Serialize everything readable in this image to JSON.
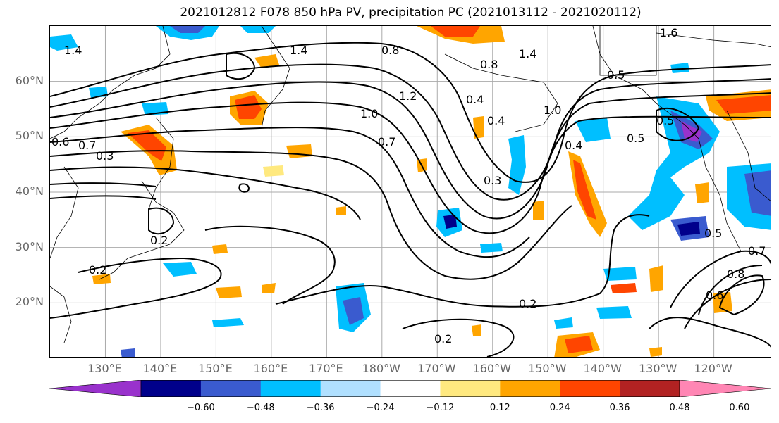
{
  "title": "2021012812 F078 850 hPa PV, precipitation PC (2021013112 - 2021020112)",
  "lat_labels": [
    "60°N",
    "50°N",
    "40°N",
    "30°N",
    "20°N"
  ],
  "lat_values": [
    60,
    50,
    40,
    30,
    20
  ],
  "lon_labels": [
    "130°E",
    "140°E",
    "150°E",
    "160°E",
    "170°E",
    "180°W",
    "170°W",
    "160°W",
    "150°W",
    "140°W",
    "130°W",
    "120°W"
  ],
  "lon_values": [
    130,
    140,
    150,
    160,
    170,
    180,
    190,
    200,
    210,
    220,
    230,
    240
  ],
  "map_extent": {
    "lon_min": 120,
    "lon_max": 250.5,
    "lat_min": 10,
    "lat_max": 70
  },
  "contour_labels": [
    "1.4",
    "1.4",
    "1.4",
    "1.6",
    "0.8",
    "0.8",
    "1.2",
    "1.0",
    "0.7",
    "0.6",
    "0.7",
    "0.4",
    "0.4",
    "1.0",
    "0.5",
    "0.5",
    "0.3",
    "0.3",
    "0.2",
    "0.2",
    "0.2",
    "0.2",
    "0.5",
    "0.7",
    "0.8",
    "0.6",
    "0.5",
    "0.4"
  ],
  "colorbar": {
    "colors": [
      "#9932cc",
      "#00008b",
      "#3a5bcf",
      "#00bfff",
      "#b0e0ff",
      "#ffffff",
      "#ffe97f",
      "#ffa500",
      "#ff4500",
      "#b22222",
      "#ff86b4"
    ],
    "ticks": [
      "−0.60",
      "−0.48",
      "−0.36",
      "−0.24",
      "−0.12",
      "0.12",
      "0.24",
      "0.36",
      "0.48",
      "0.60"
    ]
  },
  "colors": {
    "grid": "#aaaaaa",
    "contour": "#000000",
    "coast": "#000000"
  }
}
